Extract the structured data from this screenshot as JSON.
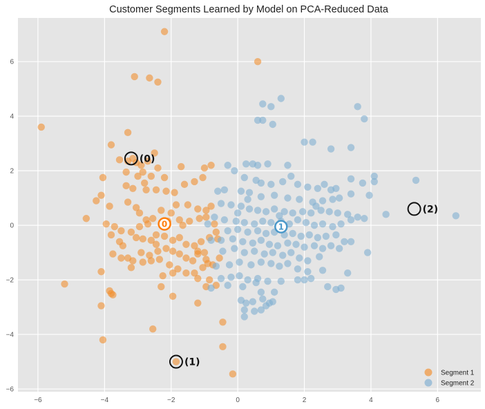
{
  "colors": {
    "plot_bg": "#e5e5e5",
    "grid": "#ffffff",
    "segment1": "#f28e2b",
    "segment2": "#7eaed1",
    "center0": "#ff7f0e",
    "center1": "#4a98c9"
  },
  "chart_data": {
    "type": "scatter",
    "title": "Customer Segments Learned by Model on PCA-Reduced Data",
    "xlabel": "",
    "ylabel": "",
    "xlim": [
      -6.6,
      7.3
    ],
    "ylim": [
      -6.1,
      7.6
    ],
    "x_ticks": [
      -6,
      -4,
      -2,
      0,
      2,
      4,
      6
    ],
    "y_ticks": [
      -6,
      -4,
      -2,
      0,
      2,
      4,
      6
    ],
    "grid": true,
    "legend_position": "bottom-right",
    "series": [
      {
        "name": "Segment 1",
        "color": "#f28e2b",
        "points": [
          [
            -2.2,
            7.1
          ],
          [
            -3.1,
            5.45
          ],
          [
            -2.65,
            5.4
          ],
          [
            -2.4,
            5.25
          ],
          [
            0.6,
            6.0
          ],
          [
            -5.9,
            3.6
          ],
          [
            -3.3,
            3.4
          ],
          [
            -3.8,
            2.95
          ],
          [
            -3.55,
            2.4
          ],
          [
            -3.3,
            2.35
          ],
          [
            -3.15,
            2.45
          ],
          [
            -3.05,
            2.3
          ],
          [
            -2.9,
            2.2
          ],
          [
            -2.7,
            2.35
          ],
          [
            -2.5,
            2.65
          ],
          [
            -2.4,
            2.1
          ],
          [
            -2.85,
            1.95
          ],
          [
            -2.6,
            1.8
          ],
          [
            -2.2,
            1.75
          ],
          [
            -1.7,
            2.15
          ],
          [
            -1.0,
            2.1
          ],
          [
            -0.8,
            2.2
          ],
          [
            -4.05,
            1.75
          ],
          [
            -3.35,
            1.95
          ],
          [
            -3.0,
            1.8
          ],
          [
            -2.8,
            1.55
          ],
          [
            -3.35,
            1.45
          ],
          [
            -3.15,
            1.35
          ],
          [
            -2.75,
            1.3
          ],
          [
            -2.45,
            1.3
          ],
          [
            -2.15,
            1.25
          ],
          [
            -1.9,
            1.2
          ],
          [
            -1.6,
            1.5
          ],
          [
            -1.3,
            1.6
          ],
          [
            -1.05,
            1.75
          ],
          [
            -4.1,
            1.1
          ],
          [
            -4.25,
            0.9
          ],
          [
            -3.85,
            0.7
          ],
          [
            -3.3,
            0.85
          ],
          [
            -3.05,
            0.65
          ],
          [
            -2.95,
            0.45
          ],
          [
            -2.75,
            0.2
          ],
          [
            -2.55,
            0.25
          ],
          [
            -2.3,
            0.55
          ],
          [
            -2.0,
            0.45
          ],
          [
            -1.85,
            0.75
          ],
          [
            -1.5,
            0.75
          ],
          [
            -1.2,
            0.6
          ],
          [
            -0.95,
            0.55
          ],
          [
            -0.8,
            0.7
          ],
          [
            -0.95,
            0.3
          ],
          [
            -1.15,
            0.25
          ],
          [
            -1.45,
            0.15
          ],
          [
            -1.75,
            0.2
          ],
          [
            -2.1,
            0.15
          ],
          [
            -4.55,
            0.25
          ],
          [
            -3.95,
            0.05
          ],
          [
            -3.7,
            -0.05
          ],
          [
            -3.5,
            -0.2
          ],
          [
            -3.2,
            -0.25
          ],
          [
            -3.05,
            -0.45
          ],
          [
            -2.85,
            -0.5
          ],
          [
            -2.6,
            -0.55
          ],
          [
            -2.45,
            -0.35
          ],
          [
            -2.2,
            -0.4
          ],
          [
            -1.95,
            -0.55
          ],
          [
            -1.75,
            -0.45
          ],
          [
            -1.55,
            -0.7
          ],
          [
            -1.3,
            -0.75
          ],
          [
            -1.1,
            -0.6
          ],
          [
            -0.85,
            -0.45
          ],
          [
            -0.6,
            -0.5
          ],
          [
            -3.8,
            -0.35
          ],
          [
            -3.45,
            -0.75
          ],
          [
            -3.75,
            -1.05
          ],
          [
            -3.5,
            -1.2
          ],
          [
            -3.3,
            -1.2
          ],
          [
            -3.15,
            -1.3
          ],
          [
            -2.9,
            -1.0
          ],
          [
            -2.65,
            -1.1
          ],
          [
            -2.4,
            -0.95
          ],
          [
            -2.15,
            -0.85
          ],
          [
            -1.95,
            -0.95
          ],
          [
            -1.75,
            -1.05
          ],
          [
            -1.55,
            -1.2
          ],
          [
            -1.35,
            -1.3
          ],
          [
            -1.2,
            -1.05
          ],
          [
            -0.95,
            -1.25
          ],
          [
            -0.75,
            -1.45
          ],
          [
            -0.55,
            -1.2
          ],
          [
            -3.2,
            -1.55
          ],
          [
            -2.85,
            -1.35
          ],
          [
            -2.6,
            -1.3
          ],
          [
            -2.35,
            -1.25
          ],
          [
            -2.05,
            -1.45
          ],
          [
            -1.8,
            -1.6
          ],
          [
            -1.55,
            -1.75
          ],
          [
            -1.3,
            -1.75
          ],
          [
            -1.05,
            -1.55
          ],
          [
            -0.9,
            -1.4
          ],
          [
            -1.0,
            -1.0
          ],
          [
            -1.2,
            -0.95
          ],
          [
            -4.1,
            -1.7
          ],
          [
            -2.25,
            -1.85
          ],
          [
            -1.95,
            -1.75
          ],
          [
            -0.85,
            -2.0
          ],
          [
            -1.2,
            -1.95
          ],
          [
            -0.65,
            -2.2
          ],
          [
            -5.2,
            -2.15
          ],
          [
            -3.85,
            -2.4
          ],
          [
            -3.75,
            -2.55
          ],
          [
            -3.8,
            -2.5
          ],
          [
            -2.3,
            -2.25
          ],
          [
            -1.95,
            -2.6
          ],
          [
            -0.95,
            -2.25
          ],
          [
            -4.1,
            -2.95
          ],
          [
            -1.2,
            -2.85
          ],
          [
            -0.45,
            -3.55
          ],
          [
            -2.55,
            -3.8
          ],
          [
            -4.05,
            -4.2
          ],
          [
            -0.45,
            -4.45
          ],
          [
            -1.85,
            -5.0
          ],
          [
            -0.15,
            -5.45
          ],
          [
            -2.7,
            0.05
          ],
          [
            -2.95,
            -0.05
          ],
          [
            -1.65,
            0.0
          ],
          [
            -0.7,
            0.05
          ],
          [
            -0.65,
            -0.25
          ],
          [
            -3.55,
            -0.6
          ],
          [
            -2.45,
            -0.7
          ]
        ]
      },
      {
        "name": "Segment 2",
        "color": "#7eaed1",
        "points": [
          [
            1.3,
            4.65
          ],
          [
            0.75,
            4.45
          ],
          [
            1.0,
            4.35
          ],
          [
            0.6,
            3.85
          ],
          [
            0.75,
            3.85
          ],
          [
            1.05,
            3.7
          ],
          [
            3.6,
            4.35
          ],
          [
            3.8,
            3.9
          ],
          [
            2.0,
            3.05
          ],
          [
            2.25,
            3.05
          ],
          [
            2.8,
            2.8
          ],
          [
            3.4,
            2.85
          ],
          [
            -0.3,
            2.2
          ],
          [
            0.25,
            2.25
          ],
          [
            0.45,
            2.25
          ],
          [
            0.6,
            2.2
          ],
          [
            0.9,
            2.25
          ],
          [
            1.5,
            2.2
          ],
          [
            -0.1,
            2.0
          ],
          [
            1.6,
            1.8
          ],
          [
            2.6,
            1.5
          ],
          [
            3.4,
            1.7
          ],
          [
            3.75,
            1.55
          ],
          [
            4.1,
            1.8
          ],
          [
            4.1,
            1.6
          ],
          [
            5.35,
            1.65
          ],
          [
            0.2,
            1.75
          ],
          [
            0.55,
            1.65
          ],
          [
            0.7,
            1.55
          ],
          [
            1.0,
            1.5
          ],
          [
            1.35,
            1.6
          ],
          [
            1.8,
            1.5
          ],
          [
            2.1,
            1.4
          ],
          [
            2.4,
            1.35
          ],
          [
            2.8,
            1.3
          ],
          [
            2.95,
            1.35
          ],
          [
            -0.6,
            1.25
          ],
          [
            -0.4,
            1.3
          ],
          [
            0.1,
            1.25
          ],
          [
            0.35,
            1.2
          ],
          [
            0.7,
            1.05
          ],
          [
            1.1,
            1.1
          ],
          [
            1.5,
            1.0
          ],
          [
            1.85,
            0.95
          ],
          [
            2.25,
            0.85
          ],
          [
            2.55,
            0.9
          ],
          [
            2.85,
            0.95
          ],
          [
            3.05,
            1.0
          ],
          [
            3.4,
            1.15
          ],
          [
            -0.5,
            0.8
          ],
          [
            -0.2,
            0.75
          ],
          [
            0.1,
            0.7
          ],
          [
            0.35,
            0.6
          ],
          [
            0.6,
            0.55
          ],
          [
            0.85,
            0.5
          ],
          [
            1.1,
            0.6
          ],
          [
            1.4,
            0.5
          ],
          [
            1.65,
            0.45
          ],
          [
            1.95,
            0.5
          ],
          [
            2.2,
            0.45
          ],
          [
            2.5,
            0.55
          ],
          [
            2.75,
            0.5
          ],
          [
            3.0,
            0.45
          ],
          [
            3.3,
            0.4
          ],
          [
            3.6,
            0.3
          ],
          [
            3.8,
            0.25
          ],
          [
            4.45,
            0.4
          ],
          [
            3.95,
            1.1
          ],
          [
            -0.7,
            0.3
          ],
          [
            -0.4,
            0.2
          ],
          [
            -0.05,
            0.15
          ],
          [
            0.2,
            0.1
          ],
          [
            0.5,
            0.05
          ],
          [
            0.75,
            0.15
          ],
          [
            1.0,
            0.1
          ],
          [
            1.3,
            0.15
          ],
          [
            1.55,
            0.05
          ],
          [
            1.8,
            0.2
          ],
          [
            2.05,
            0.1
          ],
          [
            2.3,
            0.0
          ],
          [
            2.55,
            0.05
          ],
          [
            2.85,
            -0.05
          ],
          [
            3.1,
            0.05
          ],
          [
            3.4,
            0.2
          ],
          [
            -0.3,
            -0.2
          ],
          [
            0.0,
            -0.15
          ],
          [
            0.3,
            -0.25
          ],
          [
            0.6,
            -0.2
          ],
          [
            0.85,
            -0.3
          ],
          [
            1.1,
            -0.25
          ],
          [
            1.4,
            -0.35
          ],
          [
            1.65,
            -0.3
          ],
          [
            1.9,
            -0.4
          ],
          [
            2.15,
            -0.35
          ],
          [
            2.4,
            -0.45
          ],
          [
            2.65,
            -0.4
          ],
          [
            2.95,
            -0.35
          ],
          [
            3.2,
            -0.6
          ],
          [
            3.4,
            -0.6
          ],
          [
            -0.8,
            -0.55
          ],
          [
            -0.5,
            -0.55
          ],
          [
            -0.15,
            -0.5
          ],
          [
            0.15,
            -0.6
          ],
          [
            0.45,
            -0.65
          ],
          [
            0.7,
            -0.55
          ],
          [
            0.95,
            -0.7
          ],
          [
            1.2,
            -0.75
          ],
          [
            1.5,
            -0.65
          ],
          [
            1.75,
            -0.7
          ],
          [
            2.0,
            -0.8
          ],
          [
            2.3,
            -0.75
          ],
          [
            2.55,
            -0.85
          ],
          [
            2.8,
            -0.75
          ],
          [
            3.05,
            -0.85
          ],
          [
            3.9,
            -1.0
          ],
          [
            -0.45,
            -0.95
          ],
          [
            -0.1,
            -0.85
          ],
          [
            0.2,
            -1.0
          ],
          [
            0.5,
            -0.95
          ],
          [
            0.8,
            -1.05
          ],
          [
            1.05,
            -1.0
          ],
          [
            1.35,
            -1.1
          ],
          [
            1.6,
            -1.0
          ],
          [
            1.85,
            -1.2
          ],
          [
            2.1,
            -1.3
          ],
          [
            2.45,
            -1.15
          ],
          [
            -0.65,
            -1.5
          ],
          [
            -0.25,
            -1.45
          ],
          [
            0.05,
            -1.35
          ],
          [
            0.4,
            -1.45
          ],
          [
            0.7,
            -1.35
          ],
          [
            1.0,
            -1.4
          ],
          [
            1.25,
            -1.5
          ],
          [
            1.5,
            -1.4
          ],
          [
            1.8,
            -1.6
          ],
          [
            2.1,
            -1.7
          ],
          [
            2.55,
            -1.65
          ],
          [
            3.3,
            -1.75
          ],
          [
            -0.5,
            -1.95
          ],
          [
            -0.2,
            -1.9
          ],
          [
            0.05,
            -1.85
          ],
          [
            0.3,
            -2.0
          ],
          [
            0.6,
            -1.95
          ],
          [
            0.9,
            -2.05
          ],
          [
            1.3,
            -2.05
          ],
          [
            1.8,
            -2.0
          ],
          [
            2.0,
            -2.0
          ],
          [
            2.2,
            -1.95
          ],
          [
            -0.8,
            -2.3
          ],
          [
            -0.3,
            -2.2
          ],
          [
            0.15,
            -2.25
          ],
          [
            0.55,
            -2.1
          ],
          [
            0.7,
            -2.45
          ],
          [
            1.1,
            -2.45
          ],
          [
            2.7,
            -2.25
          ],
          [
            2.95,
            -2.35
          ],
          [
            3.1,
            -2.3
          ],
          [
            0.1,
            -2.75
          ],
          [
            0.25,
            -2.85
          ],
          [
            0.45,
            -2.8
          ],
          [
            0.75,
            -2.7
          ],
          [
            0.95,
            -2.85
          ],
          [
            1.05,
            -2.8
          ],
          [
            0.2,
            -3.1
          ],
          [
            0.5,
            -3.15
          ],
          [
            0.7,
            -3.1
          ],
          [
            0.85,
            -2.95
          ],
          [
            0.2,
            -3.35
          ],
          [
            6.55,
            0.35
          ],
          [
            0.0,
            0.45
          ],
          [
            1.25,
            0.35
          ],
          [
            2.35,
            0.7
          ],
          [
            0.3,
            0.95
          ],
          [
            -0.9,
            0.05
          ]
        ]
      }
    ],
    "centers": [
      {
        "label": "0",
        "x": -2.2,
        "y": 0.05,
        "color": "#ff7f0e"
      },
      {
        "label": "1",
        "x": 1.3,
        "y": -0.05,
        "color": "#4a98c9"
      }
    ],
    "annotations": [
      {
        "label": "(0)",
        "x": -3.2,
        "y": 2.45
      },
      {
        "label": "(1)",
        "x": -1.85,
        "y": -5.0
      },
      {
        "label": "(2)",
        "x": 5.3,
        "y": 0.6
      }
    ],
    "legend": [
      "Segment 1",
      "Segment 2"
    ]
  }
}
